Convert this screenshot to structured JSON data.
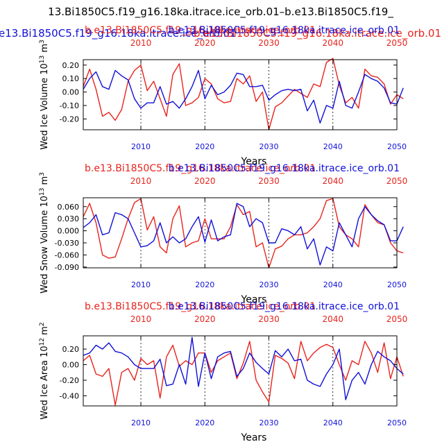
{
  "header": {
    "title_black": "13.Bi1850C5.f19_g16.18ka.itrace.ice_orb.01–b.e13.Bi1850C5.f19_",
    "title_blue": "e13.Bi1850C5.f19_g16.18ka.itrace.ice_orb.01",
    "title_red": "b.e13.Bi1850C5.f19_g16.18ka.itrace.ice_orb.01"
  },
  "colors": {
    "red": "#e8231c",
    "blue": "#1010d8",
    "black": "#000000"
  },
  "chart_data": [
    {
      "type": "line",
      "name": "ice-volume",
      "title_red": "b.e13.Bi1850C5.f19_g16.18ka.itrace.ice_orb.01",
      "title_blue": "b.e13.Bi1850C5.f19_g16.18ka.itrace.ice_orb.01",
      "ylabel": "Wed Ice Volume 10",
      "ylabel_exp": "13",
      "ylabel_unit": " m",
      "ylabel_unit_exp": "3",
      "xlabel": "Years",
      "xlim": [
        2001,
        2050
      ],
      "ylim": [
        -0.28,
        0.24
      ],
      "yticks": [
        "0.20",
        "0.10",
        "0.00",
        "-0.10",
        "-0.20"
      ],
      "ytick_values": [
        0.2,
        0.1,
        0.0,
        -0.1,
        -0.2
      ],
      "xticks": [
        "2010",
        "2020",
        "2030",
        "2040",
        "2050"
      ],
      "xtick_values": [
        2010,
        2020,
        2030,
        2040,
        2050
      ],
      "series": [
        {
          "name": "red",
          "color": "#e8231c",
          "x_start": 2001,
          "values": [
            0.04,
            0.17,
            0.02,
            -0.18,
            -0.15,
            -0.21,
            -0.13,
            0.08,
            0.16,
            0.2,
            0.01,
            0.08,
            -0.05,
            -0.18,
            0.13,
            0.21,
            -0.1,
            -0.08,
            -0.04,
            0.1,
            0.06,
            -0.05,
            -0.08,
            -0.07,
            0.1,
            0.06,
            0.12,
            -0.07,
            0.0,
            -0.28,
            -0.11,
            -0.08,
            -0.03,
            0.02,
            -0.01,
            -0.04,
            0.06,
            0.04,
            0.22,
            0.25,
            0.05,
            -0.08,
            -0.04,
            -0.12,
            0.17,
            0.12,
            0.11,
            0.06,
            -0.09,
            -0.02,
            -0.05
          ]
        },
        {
          "name": "blue",
          "color": "#1010d8",
          "x_start": 2001,
          "values": [
            0.02,
            0.1,
            0.15,
            0.04,
            0.02,
            0.16,
            0.12,
            0.09,
            -0.05,
            -0.12,
            -0.08,
            -0.08,
            0.04,
            -0.09,
            -0.07,
            -0.12,
            -0.05,
            0.04,
            0.16,
            -0.05,
            0.05,
            -0.02,
            0.0,
            0.05,
            0.14,
            0.13,
            0.04,
            0.04,
            0.05,
            -0.06,
            -0.02,
            0.01,
            0.02,
            0.01,
            0.02,
            -0.14,
            -0.06,
            -0.23,
            -0.1,
            -0.12,
            0.08,
            -0.1,
            -0.12,
            0.0,
            0.13,
            0.1,
            0.08,
            0.03,
            -0.08,
            -0.09,
            0.03
          ]
        }
      ]
    },
    {
      "type": "line",
      "name": "snow-volume",
      "title_red": "b.e13.Bi1850C5.f19_g16.18ka.itrace.ice_orb.01",
      "title_blue": "b.e13.Bi1850C5.f19_g16.18ka.itrace.ice_orb.01",
      "ylabel": "Wed Snow Volume 10",
      "ylabel_exp": "13",
      "ylabel_unit": " m",
      "ylabel_unit_exp": "3",
      "xlabel": "Years",
      "xlim": [
        2001,
        2050
      ],
      "ylim": [
        -0.092,
        0.082
      ],
      "yticks": [
        "0.060",
        "0.030",
        "0.000",
        "-0.030",
        "-0.060",
        "-0.090"
      ],
      "ytick_values": [
        0.06,
        0.03,
        0.0,
        -0.03,
        -0.06,
        -0.09
      ],
      "xticks": [
        "2010",
        "2020",
        "2030",
        "2040",
        "2050"
      ],
      "xtick_values": [
        2010,
        2020,
        2030,
        2040,
        2050
      ],
      "series": [
        {
          "name": "red",
          "color": "#e8231c",
          "x_start": 2001,
          "values": [
            0.035,
            0.068,
            0.02,
            -0.06,
            -0.068,
            -0.065,
            -0.02,
            0.03,
            0.07,
            0.08,
            0.002,
            0.035,
            -0.04,
            -0.055,
            0.03,
            0.062,
            -0.04,
            -0.03,
            -0.025,
            0.03,
            -0.02,
            -0.02,
            -0.02,
            0.01,
            0.065,
            0.04,
            0.048,
            -0.04,
            -0.03,
            -0.092,
            -0.045,
            -0.038,
            -0.02,
            -0.01,
            -0.01,
            -0.005,
            0.01,
            0.03,
            0.075,
            0.08,
            0.01,
            -0.01,
            -0.02,
            -0.04,
            0.065,
            0.04,
            0.02,
            0.015,
            -0.03,
            -0.05,
            -0.055
          ]
        },
        {
          "name": "blue",
          "color": "#1010d8",
          "x_start": 2001,
          "values": [
            0.008,
            0.02,
            0.04,
            -0.01,
            -0.005,
            0.045,
            0.04,
            0.03,
            -0.005,
            -0.04,
            -0.037,
            -0.025,
            0.02,
            -0.03,
            -0.015,
            -0.03,
            -0.02,
            0.01,
            0.035,
            -0.028,
            0.027,
            -0.025,
            -0.015,
            -0.01,
            0.068,
            0.06,
            0.01,
            0.03,
            0.02,
            -0.03,
            -0.03,
            0.005,
            0.0,
            -0.01,
            0.01,
            -0.045,
            -0.02,
            -0.085,
            -0.04,
            -0.05,
            0.02,
            -0.01,
            -0.04,
            0.03,
            0.06,
            0.04,
            0.025,
            0.015,
            -0.025,
            -0.025,
            0.01
          ]
        }
      ]
    },
    {
      "type": "line",
      "name": "ice-area",
      "title_red": "b.e13.Bi1850C5.f19_g16.18ka.itrace.ice_orb.01",
      "title_blue": "b.e13.Bi1850C5.f19_g16.18ka.itrace.ice_orb.01",
      "ylabel": "Wed Ice Area 10",
      "ylabel_exp": "12",
      "ylabel_unit": " m",
      "ylabel_unit_exp": "2",
      "xlabel": "Years",
      "xlim": [
        2001,
        2050
      ],
      "ylim": [
        -0.53,
        0.37
      ],
      "yticks": [
        "0.20",
        "0.00",
        "-0.20",
        "-0.40"
      ],
      "ytick_values": [
        0.2,
        0.0,
        -0.2,
        -0.4
      ],
      "xticks": [
        "2010",
        "2020",
        "2030",
        "2040",
        "2050"
      ],
      "xtick_values": [
        2010,
        2020,
        2030,
        2040,
        2050
      ],
      "series": [
        {
          "name": "red",
          "color": "#e8231c",
          "x_start": 2001,
          "values": [
            0.05,
            0.12,
            -0.12,
            -0.15,
            -0.05,
            -0.52,
            -0.1,
            -0.05,
            -0.2,
            0.08,
            0.0,
            0.05,
            -0.43,
            0.1,
            0.25,
            -0.02,
            0.05,
            0.0,
            0.15,
            0.15,
            -0.1,
            0.05,
            0.1,
            0.15,
            -0.18,
            0.02,
            0.3,
            -0.2,
            -0.35,
            -0.48,
            0.12,
            0.08,
            0.02,
            -0.18,
            0.3,
            0.05,
            0.15,
            0.22,
            0.26,
            0.22,
            0.0,
            -0.2,
            0.05,
            0.0,
            0.3,
            0.15,
            -0.1,
            0.28,
            -0.18,
            0.1,
            -0.15
          ]
        },
        {
          "name": "blue",
          "color": "#1010d8",
          "x_start": 2001,
          "values": [
            0.12,
            0.15,
            0.25,
            0.2,
            0.28,
            0.17,
            0.15,
            0.1,
            0.0,
            -0.05,
            -0.05,
            -0.05,
            0.07,
            -0.27,
            -0.25,
            0.0,
            -0.25,
            0.35,
            -0.28,
            0.15,
            -0.18,
            0.1,
            0.15,
            0.17,
            -0.15,
            -0.05,
            0.15,
            0.03,
            -0.05,
            -0.12,
            0.18,
            0.1,
            0.2,
            0.05,
            0.07,
            -0.2,
            -0.25,
            -0.28,
            -0.12,
            0.0,
            0.2,
            -0.45,
            -0.2,
            -0.1,
            -0.25,
            0.0,
            0.17,
            0.1,
            0.05,
            -0.05,
            -0.12
          ]
        }
      ]
    }
  ]
}
